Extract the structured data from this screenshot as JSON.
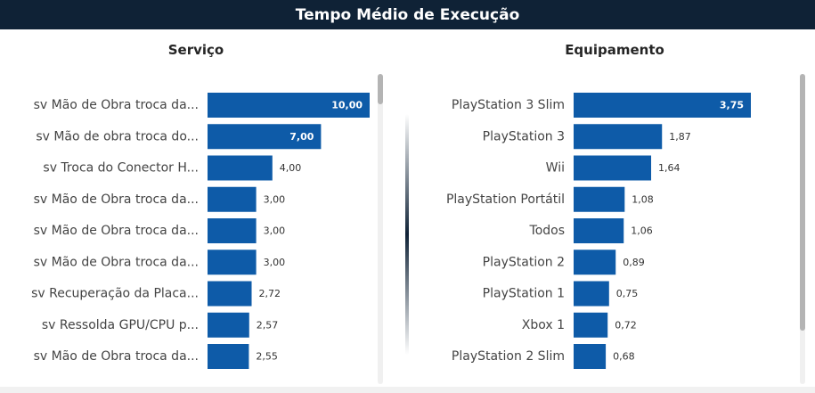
{
  "header": {
    "title": "Tempo Médio de Execução"
  },
  "colors": {
    "header_bg": "#0f2236",
    "bar": "#0e5ba8",
    "label": "#444444",
    "value_in": "#ffffff",
    "value_out": "#333333"
  },
  "chart_data": [
    {
      "type": "bar",
      "orientation": "horizontal",
      "title": "Serviço",
      "categories": [
        "sv Mão de Obra troca da...",
        "sv Mão de obra troca do...",
        "sv Troca do Conector H...",
        "sv Mão de Obra troca da...",
        "sv Mão de Obra troca da...",
        "sv Mão de Obra troca da...",
        "sv Recuperação da Placa...",
        "sv Ressolda GPU/CPU p...",
        "sv Mão de Obra troca da..."
      ],
      "values": [
        10.0,
        7.0,
        4.0,
        3.0,
        3.0,
        3.0,
        2.72,
        2.57,
        2.55
      ],
      "value_labels": [
        "10,00",
        "7,00",
        "4,00",
        "3,00",
        "3,00",
        "3,00",
        "2,72",
        "2,57",
        "2,55"
      ]
    },
    {
      "type": "bar",
      "orientation": "horizontal",
      "title": "Equipamento",
      "categories": [
        "PlayStation 3 Slim",
        "PlayStation 3",
        "Wii",
        "PlayStation Portátil",
        "Todos",
        "PlayStation 2",
        "PlayStation 1",
        "Xbox 1",
        "PlayStation 2 Slim"
      ],
      "values": [
        3.75,
        1.87,
        1.64,
        1.08,
        1.06,
        0.89,
        0.75,
        0.72,
        0.68
      ],
      "value_labels": [
        "3,75",
        "1,87",
        "1,64",
        "1,08",
        "1,06",
        "0,89",
        "0,75",
        "0,72",
        "0,68"
      ]
    }
  ]
}
